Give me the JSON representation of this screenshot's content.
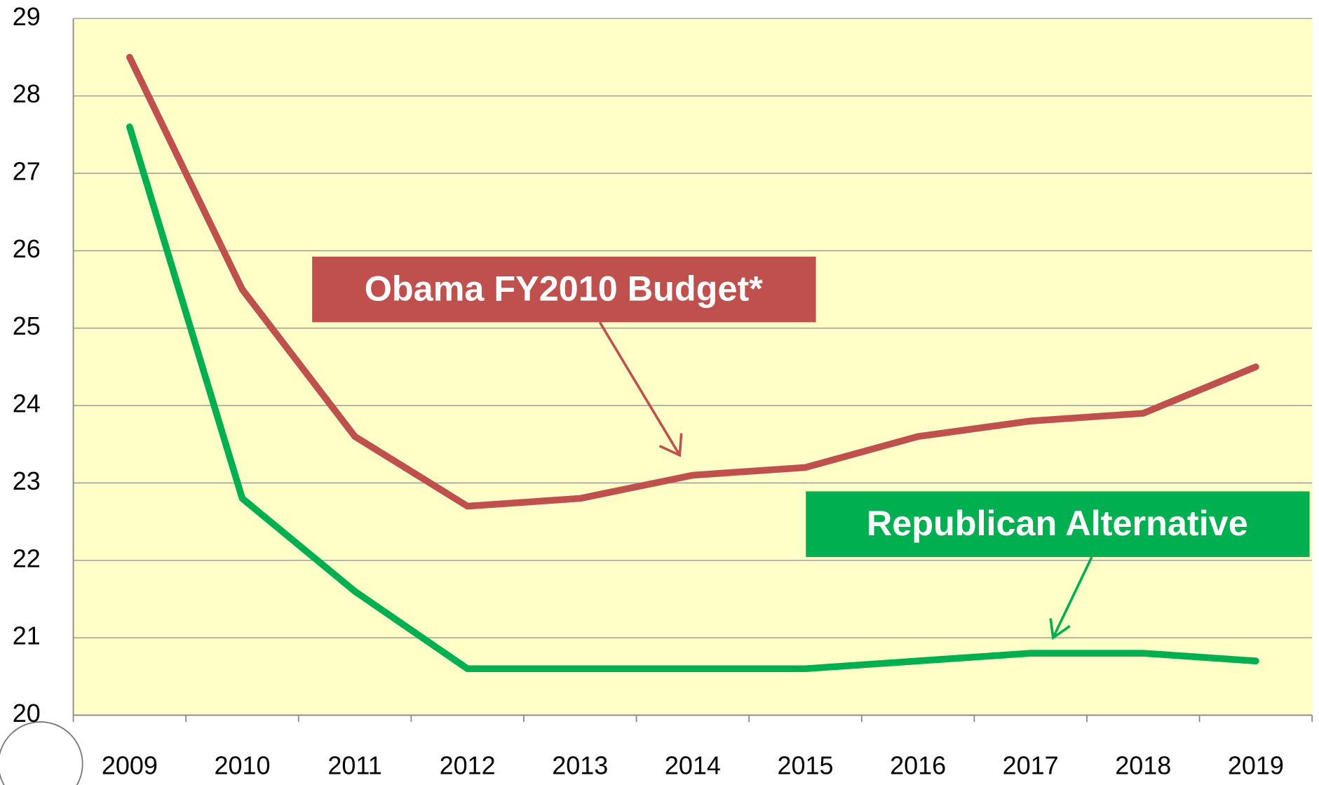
{
  "chart_data": {
    "type": "line",
    "categories": [
      "2009",
      "2010",
      "2011",
      "2012",
      "2013",
      "2014",
      "2015",
      "2016",
      "2017",
      "2018",
      "2019"
    ],
    "series": [
      {
        "name": "Obama FY2010 Budget*",
        "color": "#c0504d",
        "values": [
          28.5,
          25.5,
          23.6,
          22.7,
          22.8,
          23.1,
          23.2,
          23.6,
          23.8,
          23.9,
          24.5
        ]
      },
      {
        "name": "Republican Alternative",
        "color": "#00b050",
        "values": [
          27.6,
          22.8,
          21.6,
          20.6,
          20.6,
          20.6,
          20.6,
          20.7,
          20.8,
          20.8,
          20.7
        ]
      }
    ],
    "ylim": [
      20,
      29
    ],
    "yticks": [
      20,
      21,
      22,
      23,
      24,
      25,
      26,
      27,
      28,
      29
    ],
    "grid": true,
    "plot_background": "#ffffc8"
  }
}
